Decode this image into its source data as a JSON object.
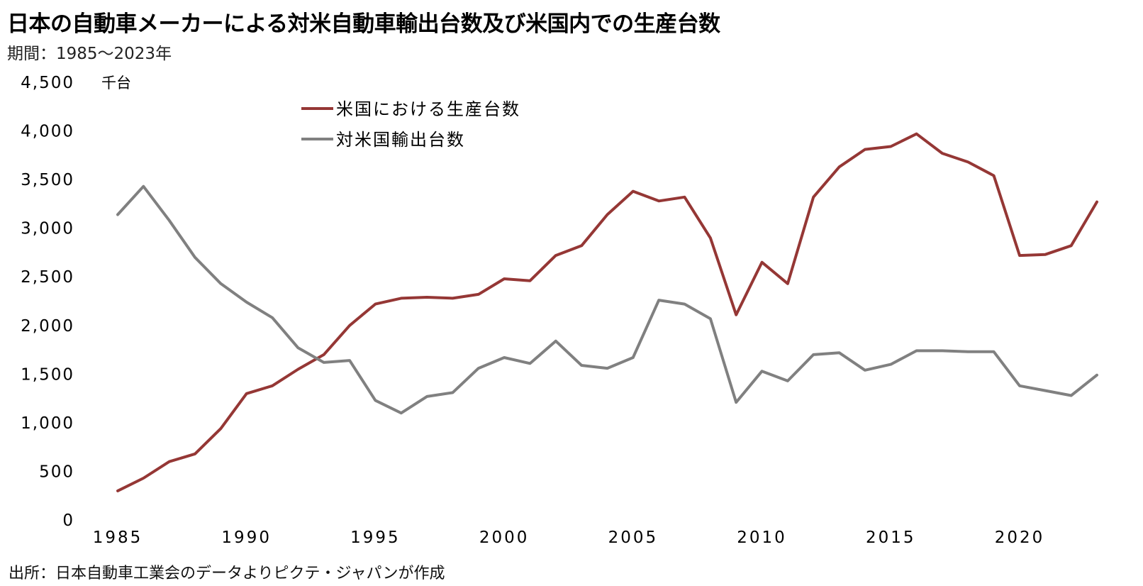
{
  "title": "日本の自動車メーカーによる対米自動車輸出台数及び米国内での生産台数",
  "subtitle": "期間：1985～2023年",
  "source": "出所：日本自動車工業会のデータよりピクテ・ジャパンが作成",
  "chart_data": {
    "type": "line",
    "unit_label": "千台",
    "x": [
      1985,
      1986,
      1987,
      1988,
      1989,
      1990,
      1991,
      1992,
      1993,
      1994,
      1995,
      1996,
      1997,
      1998,
      1999,
      2000,
      2001,
      2002,
      2003,
      2004,
      2005,
      2006,
      2007,
      2008,
      2009,
      2010,
      2011,
      2012,
      2013,
      2014,
      2015,
      2016,
      2017,
      2018,
      2019,
      2020,
      2021,
      2022,
      2023
    ],
    "x_ticks": [
      1985,
      1990,
      1995,
      2000,
      2005,
      2010,
      2015,
      2020
    ],
    "x_tick_labels": [
      "1985",
      "1990",
      "1995",
      "2000",
      "2005",
      "2010",
      "2015",
      "2020"
    ],
    "ylim": [
      0,
      4500
    ],
    "y_ticks": [
      0,
      500,
      1000,
      1500,
      2000,
      2500,
      3000,
      3500,
      4000,
      4500
    ],
    "y_tick_labels": [
      "0",
      "500",
      "1,000",
      "1,500",
      "2,000",
      "2,500",
      "3,000",
      "3,500",
      "4,000",
      "4,500"
    ],
    "legend_position": "top-center",
    "series": [
      {
        "name": "米国における生産台数",
        "color": "#953735",
        "values": [
          300,
          430,
          600,
          680,
          940,
          1300,
          1380,
          1550,
          1700,
          2000,
          2220,
          2280,
          2290,
          2280,
          2320,
          2480,
          2460,
          2720,
          2820,
          3140,
          3380,
          3280,
          3320,
          2900,
          2110,
          2650,
          2430,
          3320,
          3630,
          3810,
          3840,
          3970,
          3770,
          3680,
          3540,
          2720,
          2730,
          2820,
          3270
        ]
      },
      {
        "name": "対米国輸出台数",
        "color": "#808080",
        "values": [
          3140,
          3430,
          3080,
          2700,
          2430,
          2240,
          2080,
          1770,
          1620,
          1640,
          1230,
          1100,
          1270,
          1310,
          1560,
          1670,
          1610,
          1840,
          1590,
          1560,
          1670,
          2260,
          2220,
          2070,
          1210,
          1530,
          1430,
          1700,
          1720,
          1540,
          1600,
          1740,
          1740,
          1730,
          1730,
          1380,
          1330,
          1280,
          1490
        ]
      }
    ]
  }
}
